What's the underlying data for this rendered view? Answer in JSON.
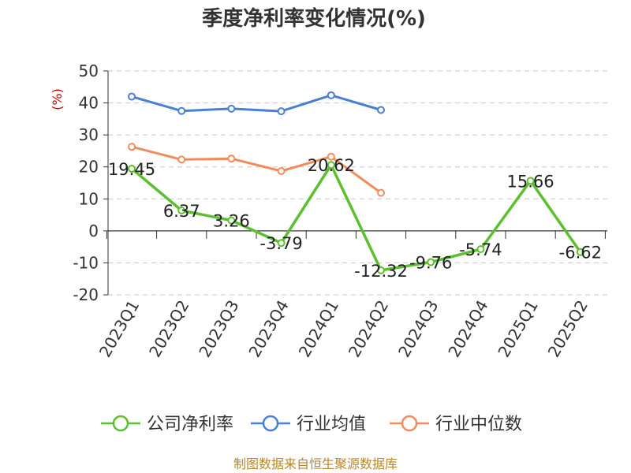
{
  "chart_data": {
    "type": "line",
    "title": "季度净利率变化情况(%)",
    "ylabel": "(%)",
    "ylim": [
      -20,
      50
    ],
    "yticks": [
      50,
      40,
      30,
      20,
      10,
      0,
      -10,
      -20
    ],
    "categories": [
      "2023Q1",
      "2023Q2",
      "2023Q3",
      "2023Q4",
      "2024Q1",
      "2024Q2",
      "2024Q3",
      "2024Q4",
      "2025Q1",
      "2025Q2"
    ],
    "series": [
      {
        "name": "公司净利率",
        "color": "#5bbf2e",
        "values": [
          19.45,
          6.37,
          3.26,
          -3.79,
          20.62,
          -12.32,
          -9.76,
          -5.74,
          15.66,
          -6.62
        ],
        "labels": [
          "19.45",
          "6.37",
          "3.26",
          "-3.79",
          "20.62",
          "-12.32",
          "-9.76",
          "-5.74",
          "15.66",
          "-6.62"
        ]
      },
      {
        "name": "行业均值",
        "color": "#4a7fd6",
        "values": [
          42.0,
          37.5,
          38.2,
          37.4,
          42.4,
          37.8,
          null,
          null,
          null,
          null
        ]
      },
      {
        "name": "行业中位数",
        "color": "#f38b5a",
        "values": [
          26.3,
          22.3,
          22.6,
          18.7,
          23.2,
          11.9,
          null,
          null,
          null,
          null
        ]
      }
    ],
    "grid": true,
    "legend": "bottom"
  },
  "source": "制图数据来自恒生聚源数据库"
}
